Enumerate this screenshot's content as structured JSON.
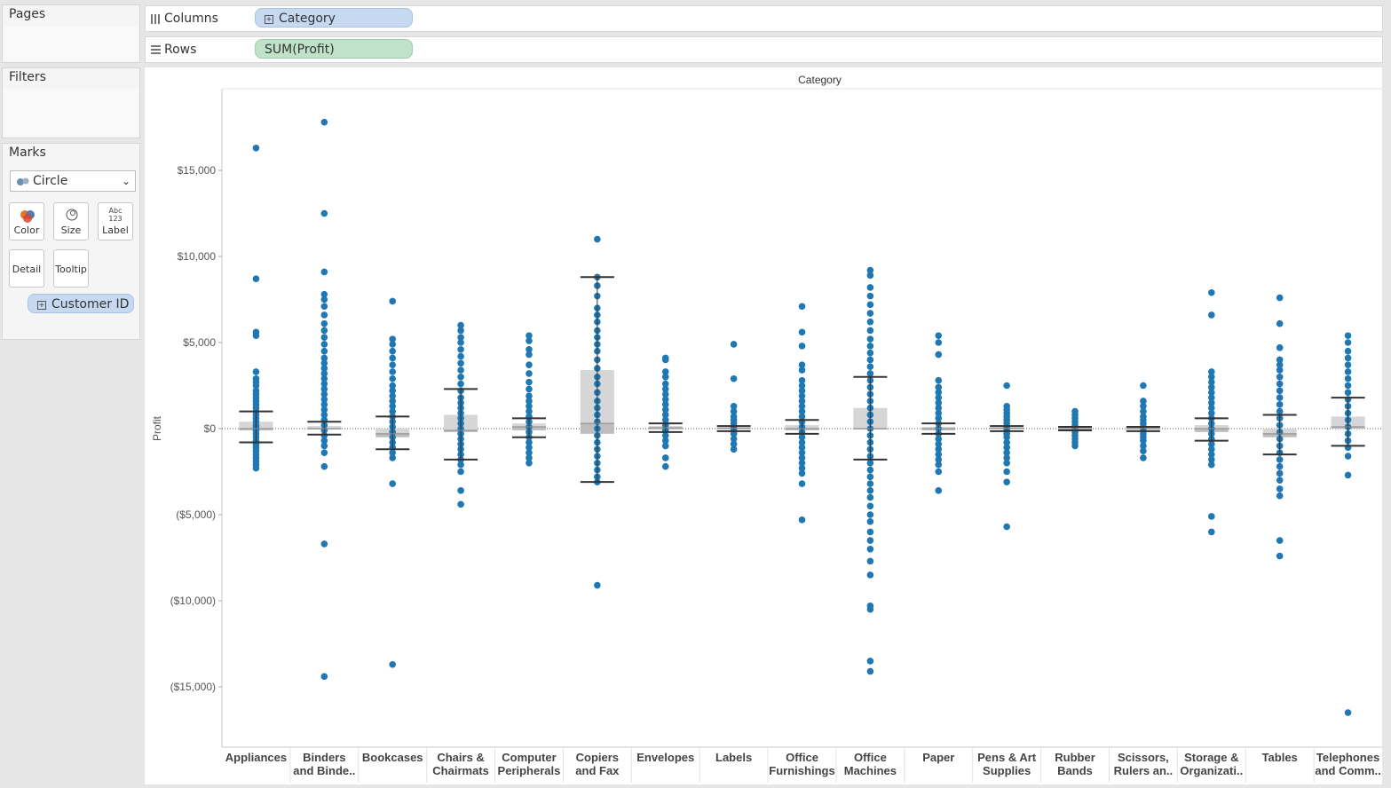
{
  "pages": {
    "title": "Pages"
  },
  "filters": {
    "title": "Filters"
  },
  "marks": {
    "title": "Marks",
    "mark_type": "Circle",
    "buttons": [
      {
        "label": "Color",
        "icon": "color-icon"
      },
      {
        "label": "Size",
        "icon": "size-icon"
      },
      {
        "label": "Label",
        "icon": "label-icon"
      },
      {
        "label": "Detail",
        "icon": "detail-icon"
      },
      {
        "label": "Tooltip",
        "icon": "tooltip-icon"
      }
    ],
    "label_icon_text": {
      "top": "Abc",
      "bottom": "123"
    },
    "detail_pill": "Customer ID"
  },
  "columns_shelf": {
    "label": "Columns",
    "pill": "Category"
  },
  "rows_shelf": {
    "label": "Rows",
    "pill": "SUM(Profit)"
  },
  "colors": {
    "dot": "#1f77b4",
    "box": "#d6d6d6",
    "whisker": "#333333",
    "pill_blue": "#c6d9f1",
    "pill_green": "#c0e2c8"
  },
  "chart_data": {
    "type": "scatter",
    "title": "Category",
    "ylabel": "Profit",
    "ylim": [
      -18000,
      19000
    ],
    "y_ticks": [
      15000,
      10000,
      5000,
      0,
      -5000,
      -10000,
      -15000
    ],
    "y_tick_labels": [
      "$15,000",
      "$10,000",
      "$5,000",
      "$0",
      "($5,000)",
      "($10,000)",
      "($15,000)"
    ],
    "categories": [
      {
        "name": [
          "Appliances",
          ""
        ],
        "box": {
          "whisker_high": 1000,
          "q3": 400,
          "median": 0,
          "q1": -100,
          "whisker_low": -800
        },
        "points": [
          16300,
          8700,
          5600,
          5400,
          3300,
          2900,
          2700,
          2500,
          2200,
          2000,
          1800,
          1600,
          1400,
          1200,
          1000,
          800,
          600,
          400,
          200,
          100,
          -100,
          -300,
          -500,
          -700,
          -900,
          -1100,
          -1300,
          -1500,
          -1700,
          -1900,
          -2100,
          -2300
        ]
      },
      {
        "name": [
          "Binders",
          "and Binde.."
        ],
        "box": {
          "whisker_high": 400,
          "q3": 150,
          "median": 0,
          "q1": -50,
          "whisker_low": -350
        },
        "points": [
          17800,
          12500,
          9100,
          7800,
          7500,
          7100,
          6600,
          6100,
          5700,
          5300,
          4900,
          4500,
          4100,
          3800,
          3500,
          3200,
          2900,
          2600,
          2300,
          2000,
          1700,
          1400,
          1100,
          800,
          500,
          200,
          -100,
          -400,
          -700,
          -1000,
          -1400,
          -2200,
          -6700,
          -14400
        ]
      },
      {
        "name": [
          "Bookcases",
          ""
        ],
        "box": {
          "whisker_high": 700,
          "q3": 0,
          "median": -300,
          "q1": -500,
          "whisker_low": -1200
        },
        "points": [
          7400,
          5200,
          4900,
          4500,
          4100,
          3700,
          3300,
          2900,
          2500,
          2200,
          1900,
          1600,
          1300,
          1000,
          700,
          400,
          100,
          -200,
          -500,
          -800,
          -1100,
          -1400,
          -1700,
          -3200,
          -13700
        ]
      },
      {
        "name": [
          "Chairs &",
          "Chairmats"
        ],
        "box": {
          "whisker_high": 2300,
          "q3": 800,
          "median": -100,
          "q1": -200,
          "whisker_low": -1800
        },
        "points": [
          6000,
          5700,
          5300,
          5000,
          4600,
          4200,
          3800,
          3400,
          3000,
          2600,
          2200,
          1800,
          1500,
          1200,
          900,
          600,
          300,
          0,
          -300,
          -600,
          -900,
          -1200,
          -1500,
          -1800,
          -2100,
          -2500,
          -3600,
          -4400
        ]
      },
      {
        "name": [
          "Computer",
          "Peripherals"
        ],
        "box": {
          "whisker_high": 600,
          "q3": 300,
          "median": 100,
          "q1": -100,
          "whisker_low": -500
        },
        "points": [
          5400,
          5100,
          4600,
          4300,
          3700,
          3200,
          2700,
          2300,
          1900,
          1600,
          1300,
          1000,
          700,
          400,
          100,
          -200,
          -500,
          -800,
          -1100,
          -1400,
          -1700,
          -2000
        ]
      },
      {
        "name": [
          "Copiers",
          "and Fax"
        ],
        "box": {
          "whisker_high": 8800,
          "q3": 3400,
          "median": 300,
          "q1": -300,
          "whisker_low": -3100
        },
        "points": [
          11000,
          8800,
          8300,
          7700,
          7000,
          6600,
          6200,
          5700,
          5300,
          4900,
          4500,
          4000,
          3500,
          3000,
          2600,
          2100,
          1600,
          1200,
          800,
          400,
          0,
          -400,
          -800,
          -1200,
          -1600,
          -2000,
          -2400,
          -2800,
          -3100,
          -9100
        ]
      },
      {
        "name": [
          "Envelopes",
          ""
        ],
        "box": {
          "whisker_high": 300,
          "q3": 150,
          "median": 50,
          "q1": -50,
          "whisker_low": -200
        },
        "points": [
          4100,
          4000,
          3300,
          3000,
          2600,
          2300,
          2000,
          1700,
          1400,
          1100,
          800,
          500,
          200,
          -100,
          -400,
          -700,
          -1000,
          -1700,
          -2200
        ]
      },
      {
        "name": [
          "Labels",
          ""
        ],
        "box": {
          "whisker_high": 150,
          "q3": 80,
          "median": 20,
          "q1": -30,
          "whisker_low": -150
        },
        "points": [
          4900,
          2900,
          1300,
          1000,
          700,
          500,
          300,
          100,
          -100,
          -300,
          -600,
          -900,
          -1200
        ]
      },
      {
        "name": [
          "Office",
          "Furnishings"
        ],
        "box": {
          "whisker_high": 500,
          "q3": 200,
          "median": 0,
          "q1": -100,
          "whisker_low": -300
        },
        "points": [
          7100,
          5600,
          4800,
          3700,
          3400,
          2800,
          2500,
          2200,
          1900,
          1600,
          1300,
          1000,
          700,
          400,
          100,
          -200,
          -500,
          -800,
          -1100,
          -1400,
          -1700,
          -2000,
          -2300,
          -2600,
          -3200,
          -5300
        ]
      },
      {
        "name": [
          "Office",
          "Machines"
        ],
        "box": {
          "whisker_high": 3000,
          "q3": 1200,
          "median": 0,
          "q1": -50,
          "whisker_low": -1800
        },
        "points": [
          9200,
          8900,
          8200,
          7700,
          7200,
          6700,
          6200,
          5700,
          5200,
          4800,
          4400,
          4000,
          3600,
          3200,
          2800,
          2400,
          2000,
          1600,
          1200,
          800,
          400,
          0,
          -400,
          -800,
          -1200,
          -1600,
          -2000,
          -2400,
          -2800,
          -3200,
          -3600,
          -4000,
          -4500,
          -5000,
          -5400,
          -6000,
          -6500,
          -7000,
          -7700,
          -8500,
          -10300,
          -10500,
          -13500,
          -14100
        ]
      },
      {
        "name": [
          "Paper",
          ""
        ],
        "box": {
          "whisker_high": 300,
          "q3": 100,
          "median": 0,
          "q1": -100,
          "whisker_low": -300
        },
        "points": [
          5400,
          5000,
          4300,
          2800,
          2400,
          2100,
          1800,
          1500,
          1200,
          900,
          600,
          300,
          0,
          -300,
          -600,
          -900,
          -1200,
          -1500,
          -1800,
          -2100,
          -2500,
          -3600
        ]
      },
      {
        "name": [
          "Pens & Art",
          "Supplies"
        ],
        "box": {
          "whisker_high": 150,
          "q3": 80,
          "median": 20,
          "q1": -30,
          "whisker_low": -150
        },
        "points": [
          2500,
          1300,
          1100,
          900,
          700,
          500,
          300,
          100,
          -100,
          -300,
          -500,
          -800,
          -1100,
          -1400,
          -1700,
          -2000,
          -2500,
          -3100,
          -5700
        ]
      },
      {
        "name": [
          "Rubber",
          "Bands"
        ],
        "box": {
          "whisker_high": 100,
          "q3": 50,
          "median": 0,
          "q1": -30,
          "whisker_low": -100
        },
        "points": [
          1000,
          800,
          600,
          400,
          200,
          0,
          -200,
          -400,
          -600,
          -800,
          -1000
        ]
      },
      {
        "name": [
          "Scissors,",
          "Rulers an.."
        ],
        "box": {
          "whisker_high": 100,
          "q3": 50,
          "median": 0,
          "q1": -50,
          "whisker_low": -150
        },
        "points": [
          2500,
          1600,
          1300,
          1000,
          700,
          500,
          300,
          100,
          -100,
          -300,
          -500,
          -700,
          -1000,
          -1300,
          -1700
        ]
      },
      {
        "name": [
          "Storage &",
          "Organizati.."
        ],
        "box": {
          "whisker_high": 600,
          "q3": 200,
          "median": 0,
          "q1": -200,
          "whisker_low": -700
        },
        "points": [
          7900,
          6600,
          3300,
          3000,
          2700,
          2400,
          2100,
          1800,
          1500,
          1200,
          900,
          600,
          300,
          0,
          -300,
          -600,
          -900,
          -1200,
          -1500,
          -1800,
          -2100,
          -5100,
          -6000
        ]
      },
      {
        "name": [
          "Tables",
          ""
        ],
        "box": {
          "whisker_high": 800,
          "q3": 0,
          "median": -300,
          "q1": -500,
          "whisker_low": -1500
        },
        "points": [
          7600,
          6100,
          4700,
          4000,
          3700,
          3400,
          3000,
          2600,
          2200,
          1800,
          1400,
          1000,
          600,
          200,
          -200,
          -600,
          -1000,
          -1400,
          -1800,
          -2200,
          -2600,
          -3000,
          -3500,
          -3900,
          -6500,
          -7400
        ]
      },
      {
        "name": [
          "Telephones",
          "and Comm.."
        ],
        "box": {
          "whisker_high": 1800,
          "q3": 700,
          "median": 100,
          "q1": 0,
          "whisker_low": -1000
        },
        "points": [
          5400,
          5000,
          4500,
          4100,
          3700,
          3300,
          2900,
          2500,
          2100,
          1700,
          1300,
          900,
          500,
          100,
          -300,
          -700,
          -1100,
          -1600,
          -2700,
          -16500
        ]
      }
    ]
  }
}
